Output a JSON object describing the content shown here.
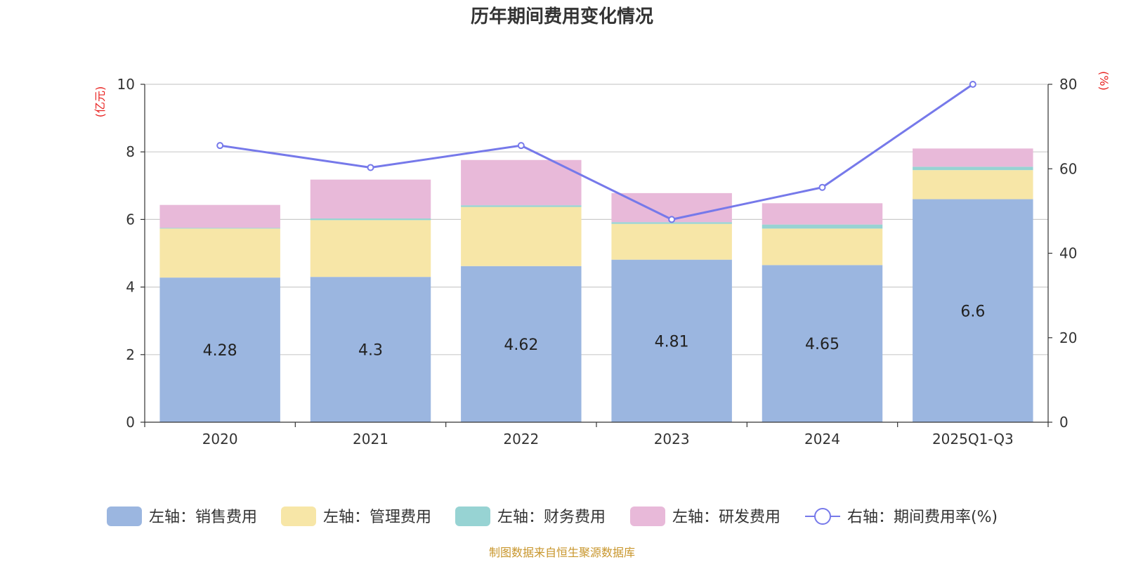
{
  "chart_data": {
    "type": "bar",
    "stacked": true,
    "title": "历年期间费用变化情况",
    "categories": [
      "2020",
      "2021",
      "2022",
      "2023",
      "2024",
      "2025Q1-Q3"
    ],
    "left_axis": {
      "unit_label": "(亿元)",
      "ylim": [
        0,
        10
      ],
      "ticks": [
        "0",
        "2",
        "4",
        "6",
        "8",
        "10"
      ]
    },
    "right_axis": {
      "unit_label": "(%)",
      "ylim": [
        0,
        80
      ],
      "ticks": [
        "0",
        "20",
        "40",
        "60",
        "80"
      ]
    },
    "series": [
      {
        "name": "左轴：销售费用",
        "axis": "left",
        "kind": "bar",
        "color": "#9bb6e0",
        "values": [
          4.28,
          4.3,
          4.62,
          4.81,
          4.65,
          6.6
        ],
        "labels": [
          "4.28",
          "4.3",
          "4.62",
          "4.81",
          "4.65",
          "6.6"
        ]
      },
      {
        "name": "左轴：管理费用",
        "axis": "left",
        "kind": "bar",
        "color": "#f7e6a7",
        "values": [
          1.45,
          1.68,
          1.75,
          1.06,
          1.08,
          0.86
        ]
      },
      {
        "name": "左轴：财务费用",
        "axis": "left",
        "kind": "bar",
        "color": "#97d3d3",
        "values": [
          0.02,
          0.05,
          0.05,
          0.05,
          0.12,
          0.1
        ]
      },
      {
        "name": "左轴：研发费用",
        "axis": "left",
        "kind": "bar",
        "color": "#e8b9d9",
        "values": [
          0.68,
          1.15,
          1.34,
          0.86,
          0.63,
          0.54
        ]
      },
      {
        "name": "右轴：期间费用率(%)",
        "axis": "right",
        "kind": "line",
        "color": "#7679ea",
        "values": [
          65.5,
          60.3,
          65.5,
          48.0,
          55.6,
          80.0
        ]
      }
    ],
    "grid": true,
    "legend_position": "bottom"
  },
  "source_note": "制图数据来自恒生聚源数据库"
}
